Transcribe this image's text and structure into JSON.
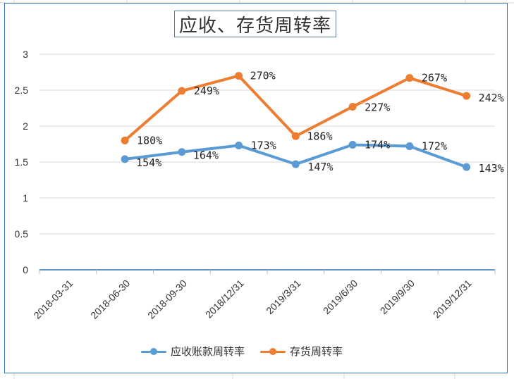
{
  "chart_data": {
    "type": "line",
    "title": "应收、存货周转率",
    "categories": [
      "2018-03-31",
      "2018-06-30",
      "2018-09-30",
      "2018/12/31",
      "2019/3/31",
      "2019/6/30",
      "2019/9/30",
      "2019/12/31"
    ],
    "ylim": [
      0,
      3
    ],
    "yticks": [
      "0",
      "0.5",
      "1",
      "1.5",
      "2",
      "2.5",
      "3"
    ],
    "grid": true,
    "legend_position": "bottom",
    "series": [
      {
        "name": "应收账款周转率",
        "color": "#5b9bd5",
        "values": [
          null,
          1.54,
          1.64,
          1.73,
          1.47,
          1.74,
          1.72,
          1.43
        ],
        "labels": [
          "",
          "154%",
          "164%",
          "173%",
          "147%",
          "174%",
          "172%",
          "143%"
        ]
      },
      {
        "name": "存货周转率",
        "color": "#ed7d31",
        "values": [
          null,
          1.8,
          2.49,
          2.7,
          1.86,
          2.27,
          2.67,
          2.42
        ],
        "labels": [
          "",
          "180%",
          "249%",
          "270%",
          "186%",
          "227%",
          "267%",
          "242%"
        ]
      }
    ]
  },
  "colors": {
    "frame": "#2e75b6",
    "grid": "#d9d9d9",
    "axis": "#2e75b6"
  }
}
